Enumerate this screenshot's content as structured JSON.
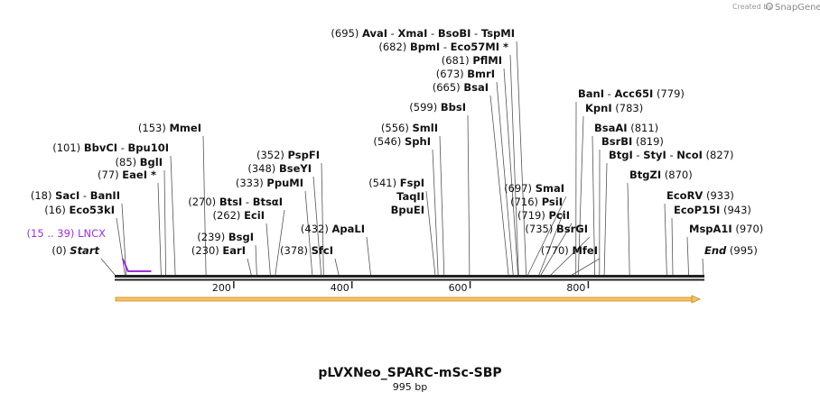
{
  "credit": {
    "created_by": "Created by",
    "brand": "SnapGene"
  },
  "title": "pLVXNeo_SPARC-mSc-SBP",
  "length_label": "995 bp",
  "sequence_length": 995,
  "colors": {
    "feature": "#9b30d9",
    "arrow_fill": "#f5c463",
    "arrow_stroke": "#c98a1e",
    "backbone": "#222222"
  },
  "feature": {
    "range": "(15 .. 39)",
    "name": "LNCX",
    "start": 15,
    "end": 39
  },
  "ruler_ticks": [
    {
      "pos": 200,
      "label": "200"
    },
    {
      "pos": 400,
      "label": "400"
    },
    {
      "pos": 600,
      "label": "600"
    },
    {
      "pos": 800,
      "label": "800"
    }
  ],
  "sites": [
    {
      "pos": 0,
      "pos_text": "(0)",
      "names": [
        "Start"
      ],
      "special": true
    },
    {
      "pos": 16,
      "pos_text": "(16)",
      "names": [
        "Eco53kI"
      ]
    },
    {
      "pos": 18,
      "pos_text": "(18)",
      "names": [
        "SacI",
        "BanII"
      ]
    },
    {
      "pos": 77,
      "pos_text": "(77)",
      "names": [
        "EaeI *"
      ]
    },
    {
      "pos": 85,
      "pos_text": "(85)",
      "names": [
        "BglI"
      ]
    },
    {
      "pos": 101,
      "pos_text": "(101)",
      "names": [
        "BbvCI",
        "Bpu10I"
      ]
    },
    {
      "pos": 153,
      "pos_text": "(153)",
      "names": [
        "MmeI"
      ]
    },
    {
      "pos": 230,
      "pos_text": "(230)",
      "names": [
        "EarI"
      ]
    },
    {
      "pos": 239,
      "pos_text": "(239)",
      "names": [
        "BsgI"
      ]
    },
    {
      "pos": 262,
      "pos_text": "(262)",
      "names": [
        "EciI"
      ]
    },
    {
      "pos": 270,
      "pos_text": "(270)",
      "names": [
        "BtsI",
        "BtsαI"
      ]
    },
    {
      "pos": 333,
      "pos_text": "(333)",
      "names": [
        "PpuMI"
      ]
    },
    {
      "pos": 348,
      "pos_text": "(348)",
      "names": [
        "BseYI"
      ]
    },
    {
      "pos": 352,
      "pos_text": "(352)",
      "names": [
        "PspFI"
      ]
    },
    {
      "pos": 378,
      "pos_text": "(378)",
      "names": [
        "SfcI"
      ]
    },
    {
      "pos": 432,
      "pos_text": "(432)",
      "names": [
        "ApaLI"
      ]
    },
    {
      "pos": 541,
      "pos_text": "(541)",
      "names": [
        "FspI",
        "TaqII",
        "BpuEI"
      ]
    },
    {
      "pos": 546,
      "pos_text": "(546)",
      "names": [
        "SphI"
      ]
    },
    {
      "pos": 556,
      "pos_text": "(556)",
      "names": [
        "SmlI"
      ]
    },
    {
      "pos": 599,
      "pos_text": "(599)",
      "names": [
        "BbsI"
      ]
    },
    {
      "pos": 665,
      "pos_text": "(665)",
      "names": [
        "BsaI"
      ]
    },
    {
      "pos": 673,
      "pos_text": "(673)",
      "names": [
        "BmrI"
      ]
    },
    {
      "pos": 681,
      "pos_text": "(681)",
      "names": [
        "PflMI"
      ]
    },
    {
      "pos": 682,
      "pos_text": "(682)",
      "names": [
        "BpmI",
        "Eco57MI *"
      ]
    },
    {
      "pos": 695,
      "pos_text": "(695)",
      "names": [
        "AvaI",
        "XmaI",
        "BsoBI",
        "TspMI"
      ]
    },
    {
      "pos": 697,
      "pos_text": "(697)",
      "names": [
        "SmaI"
      ]
    },
    {
      "pos": 716,
      "pos_text": "(716)",
      "names": [
        "PsiI"
      ]
    },
    {
      "pos": 719,
      "pos_text": "(719)",
      "names": [
        "PciI"
      ]
    },
    {
      "pos": 735,
      "pos_text": "(735)",
      "names": [
        "BsrGI"
      ]
    },
    {
      "pos": 770,
      "pos_text": "(770)",
      "names": [
        "MfeI"
      ]
    },
    {
      "pos": 779,
      "pos_text": "(779)",
      "names": [
        "BanI",
        "Acc65I"
      ]
    },
    {
      "pos": 783,
      "pos_text": "(783)",
      "names": [
        "KpnI"
      ]
    },
    {
      "pos": 811,
      "pos_text": "(811)",
      "names": [
        "BsaAI"
      ]
    },
    {
      "pos": 819,
      "pos_text": "(819)",
      "names": [
        "BsrBI"
      ]
    },
    {
      "pos": 827,
      "pos_text": "(827)",
      "names": [
        "BtgI",
        "StyI",
        "NcoI"
      ]
    },
    {
      "pos": 870,
      "pos_text": "(870)",
      "names": [
        "BtgZI"
      ]
    },
    {
      "pos": 933,
      "pos_text": "(933)",
      "names": [
        "EcoRV"
      ]
    },
    {
      "pos": 943,
      "pos_text": "(943)",
      "names": [
        "EcoP15I"
      ]
    },
    {
      "pos": 970,
      "pos_text": "(970)",
      "names": [
        "MspA1I"
      ]
    },
    {
      "pos": 995,
      "pos_text": "(995)",
      "names": [
        "End"
      ],
      "special": true
    }
  ]
}
